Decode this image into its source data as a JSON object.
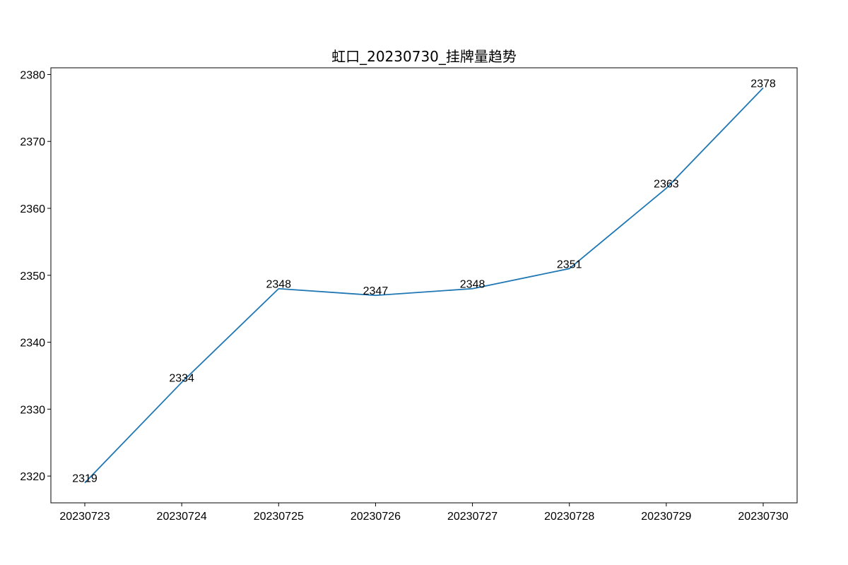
{
  "chart_data": {
    "type": "line",
    "title": "虹口_20230730_挂牌量趋势",
    "xlabel": "",
    "ylabel": "",
    "categories": [
      "20230723",
      "20230724",
      "20230725",
      "20230726",
      "20230727",
      "20230728",
      "20230729",
      "20230730"
    ],
    "series": [
      {
        "values": [
          2319,
          2334,
          2348,
          2347,
          2348,
          2351,
          2363,
          2378
        ],
        "color": "#1f77b4"
      }
    ],
    "data_labels": [
      "2319",
      "2334",
      "2348",
      "2347",
      "2348",
      "2351",
      "2363",
      "2378"
    ],
    "yticks": [
      2320,
      2330,
      2340,
      2350,
      2360,
      2370,
      2380
    ],
    "ytick_labels": [
      "2320",
      "2330",
      "2340",
      "2350",
      "2360",
      "2370",
      "2380"
    ],
    "ylim": [
      2316,
      2381
    ],
    "grid": false,
    "legend": "none"
  }
}
